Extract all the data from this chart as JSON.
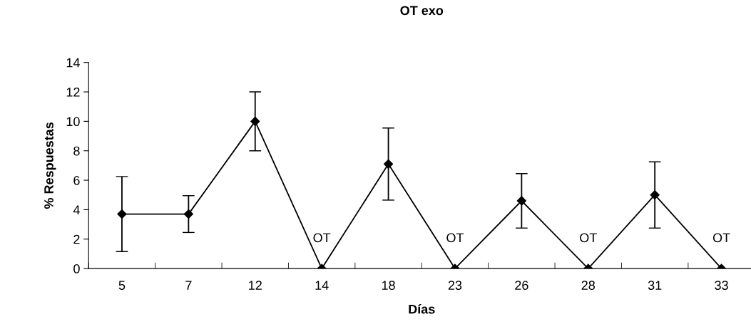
{
  "chart_data": {
    "type": "line",
    "title": "OT exo",
    "xlabel": "Días",
    "ylabel": "% Respuestas",
    "categories": [
      "5",
      "7",
      "12",
      "14",
      "18",
      "23",
      "26",
      "28",
      "31",
      "33"
    ],
    "series": [
      {
        "color": "#000000",
        "values": [
          3.7,
          3.7,
          10,
          0,
          7.1,
          0,
          4.6,
          0,
          5.0,
          0
        ],
        "errors": [
          2.55,
          1.25,
          2,
          null,
          2.45,
          null,
          1.85,
          null,
          2.25,
          null
        ]
      }
    ],
    "annotations": [
      {
        "text": "OT",
        "x": "14",
        "y": 0
      },
      {
        "text": "OT",
        "x": "23",
        "y": 0
      },
      {
        "text": "OT",
        "x": "28",
        "y": 0
      },
      {
        "text": "OT",
        "x": "33",
        "y": 0
      }
    ],
    "ylim": [
      0,
      14
    ],
    "yticks": [
      0,
      2,
      4,
      6,
      8,
      10,
      12,
      14
    ],
    "marker": "diamond",
    "line_style": "solid",
    "grid": false,
    "legend": false
  }
}
